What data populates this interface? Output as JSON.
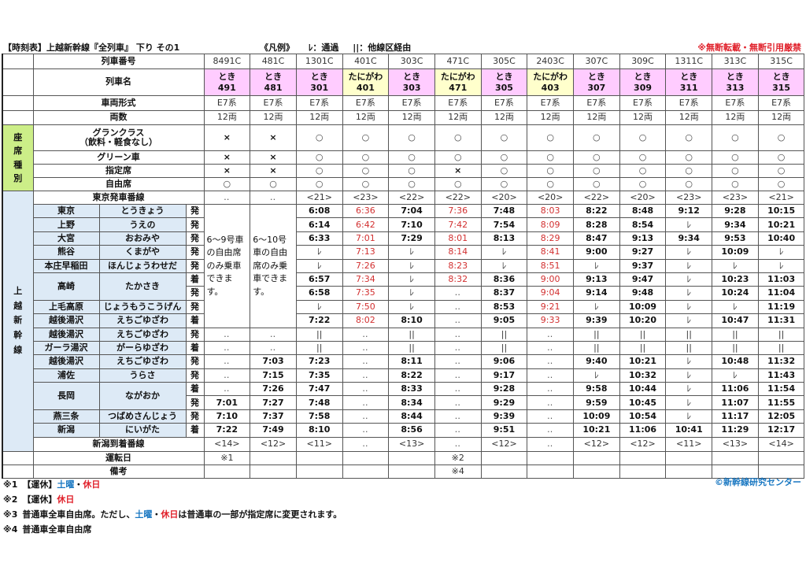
{
  "header": {
    "title": "【時刻表】上越新幹線『全列車』 下り その1",
    "legend_title": "《凡例》",
    "legend_pass": "ﾚ：通過",
    "legend_other": "||：他線区経由",
    "notice": "※無断転載・無断引用厳禁"
  },
  "labels": {
    "train_number": "列車番号",
    "train_name": "列車名",
    "car_type": "車両形式",
    "car_count": "両数",
    "seat_group": "座席種別",
    "gran_class_1": "グランクラス",
    "gran_class_2": "（飲料・軽食なし）",
    "green": "グリーン車",
    "reserved": "指定席",
    "unreserved": "自由席",
    "tokyo_track": "東京発車番線",
    "line_group": "上越新幹線",
    "niigata_track": "新潟到着番線",
    "operation_days": "運転日",
    "remarks": "備考"
  },
  "trains": [
    {
      "number": "8491C",
      "name": "とき",
      "num": "491",
      "type": "toki",
      "car": "E7系",
      "cars": "12両",
      "gran": "×",
      "green": "×",
      "reserved": "×",
      "free": "○",
      "tokyo_track": "‥",
      "niigata_track": "<14>",
      "op": "※1",
      "remark": ""
    },
    {
      "number": "481C",
      "name": "とき",
      "num": "481",
      "type": "toki",
      "car": "E7系",
      "cars": "12両",
      "gran": "×",
      "green": "×",
      "reserved": "×",
      "free": "○",
      "tokyo_track": "‥",
      "niigata_track": "<12>",
      "op": "",
      "remark": ""
    },
    {
      "number": "1301C",
      "name": "とき",
      "num": "301",
      "type": "toki",
      "car": "E7系",
      "cars": "12両",
      "gran": "○",
      "green": "○",
      "reserved": "○",
      "free": "○",
      "tokyo_track": "<21>",
      "niigata_track": "<11>",
      "op": "",
      "remark": ""
    },
    {
      "number": "401C",
      "name": "たにがわ",
      "num": "401",
      "type": "tani",
      "car": "E7系",
      "cars": "12両",
      "gran": "○",
      "green": "○",
      "reserved": "○",
      "free": "○",
      "tokyo_track": "<23>",
      "niigata_track": "‥",
      "op": "",
      "remark": ""
    },
    {
      "number": "303C",
      "name": "とき",
      "num": "303",
      "type": "toki",
      "car": "E7系",
      "cars": "12両",
      "gran": "○",
      "green": "○",
      "reserved": "○",
      "free": "○",
      "tokyo_track": "<22>",
      "niigata_track": "<13>",
      "op": "",
      "remark": ""
    },
    {
      "number": "471C",
      "name": "たにがわ",
      "num": "471",
      "type": "tani",
      "car": "E7系",
      "cars": "12両",
      "gran": "○",
      "green": "○",
      "reserved": "×",
      "free": "○",
      "tokyo_track": "<22>",
      "niigata_track": "‥",
      "op": "※2",
      "remark": "※4"
    },
    {
      "number": "305C",
      "name": "とき",
      "num": "305",
      "type": "toki",
      "car": "E7系",
      "cars": "12両",
      "gran": "○",
      "green": "○",
      "reserved": "○",
      "free": "○",
      "tokyo_track": "<20>",
      "niigata_track": "<12>",
      "op": "",
      "remark": ""
    },
    {
      "number": "2403C",
      "name": "たにがわ",
      "num": "403",
      "type": "tani",
      "car": "E7系",
      "cars": "12両",
      "gran": "○",
      "green": "○",
      "reserved": "○",
      "free": "○",
      "tokyo_track": "<20>",
      "niigata_track": "‥",
      "op": "",
      "remark": ""
    },
    {
      "number": "307C",
      "name": "とき",
      "num": "307",
      "type": "toki",
      "car": "E7系",
      "cars": "12両",
      "gran": "○",
      "green": "○",
      "reserved": "○",
      "free": "○",
      "tokyo_track": "<22>",
      "niigata_track": "<12>",
      "op": "",
      "remark": ""
    },
    {
      "number": "309C",
      "name": "とき",
      "num": "309",
      "type": "toki",
      "car": "E7系",
      "cars": "12両",
      "gran": "○",
      "green": "○",
      "reserved": "○",
      "free": "○",
      "tokyo_track": "<20>",
      "niigata_track": "<12>",
      "op": "",
      "remark": ""
    },
    {
      "number": "1311C",
      "name": "とき",
      "num": "311",
      "type": "toki",
      "car": "E7系",
      "cars": "12両",
      "gran": "○",
      "green": "○",
      "reserved": "○",
      "free": "○",
      "tokyo_track": "<23>",
      "niigata_track": "<11>",
      "op": "",
      "remark": ""
    },
    {
      "number": "313C",
      "name": "とき",
      "num": "313",
      "type": "toki",
      "car": "E7系",
      "cars": "12両",
      "gran": "○",
      "green": "○",
      "reserved": "○",
      "free": "○",
      "tokyo_track": "<23>",
      "niigata_track": "<13>",
      "op": "",
      "remark": ""
    },
    {
      "number": "315C",
      "name": "とき",
      "num": "315",
      "type": "toki",
      "car": "E7系",
      "cars": "12両",
      "gran": "○",
      "green": "○",
      "reserved": "○",
      "free": "○",
      "tokyo_track": "<21>",
      "niigata_track": "<14>",
      "op": "",
      "remark": ""
    }
  ],
  "span_notes": {
    "train_491": "6～9号車の自由席のみ乗車できます。",
    "train_481": "6～10号車の自由席のみ乗車できます。"
  },
  "stations": [
    {
      "kanji": "東京",
      "kana": "とうきょう",
      "ad": "発",
      "span": 1,
      "times": [
        null,
        null,
        "6:08",
        "6:36",
        "7:04",
        "7:36",
        "7:48",
        "8:03",
        "8:22",
        "8:48",
        "9:12",
        "9:28",
        "10:15"
      ]
    },
    {
      "kanji": "上野",
      "kana": "うえの",
      "ad": "発",
      "span": 1,
      "times": [
        null,
        null,
        "6:14",
        "6:42",
        "7:10",
        "7:42",
        "7:54",
        "8:09",
        "8:28",
        "8:54",
        "ﾚ",
        "9:34",
        "10:21"
      ]
    },
    {
      "kanji": "大宮",
      "kana": "おおみや",
      "ad": "発",
      "span": 1,
      "times": [
        null,
        null,
        "6:33",
        "7:01",
        "7:29",
        "8:01",
        "8:13",
        "8:29",
        "8:47",
        "9:13",
        "9:34",
        "9:53",
        "10:40"
      ]
    },
    {
      "kanji": "熊谷",
      "kana": "くまがや",
      "ad": "発",
      "span": 1,
      "times": [
        null,
        null,
        "ﾚ",
        "7:13",
        "ﾚ",
        "8:14",
        "ﾚ",
        "8:41",
        "9:00",
        "9:27",
        "ﾚ",
        "10:09",
        "ﾚ"
      ]
    },
    {
      "kanji": "本庄早稲田",
      "kana": "ほんじょうわせだ",
      "ad": "発",
      "span": 1,
      "times": [
        null,
        null,
        "ﾚ",
        "7:26",
        "ﾚ",
        "8:23",
        "ﾚ",
        "8:51",
        "ﾚ",
        "9:37",
        "ﾚ",
        "ﾚ",
        "ﾚ"
      ]
    },
    {
      "kanji": "高崎",
      "kana": "たかさき",
      "ad": "着",
      "span": 2,
      "times": [
        null,
        null,
        "6:57",
        "7:34",
        "ﾚ",
        "8:32",
        "8:36",
        "9:00",
        "9:13",
        "9:47",
        "ﾚ",
        "10:23",
        "11:03"
      ]
    },
    {
      "kanji": "",
      "kana": "",
      "ad": "発",
      "span": 0,
      "times": [
        null,
        null,
        "6:58",
        "7:35",
        "ﾚ",
        "‥",
        "8:37",
        "9:04",
        "9:14",
        "9:48",
        "ﾚ",
        "10:24",
        "11:04"
      ]
    },
    {
      "kanji": "上毛高原",
      "kana": "じょうもうこうげん",
      "ad": "発",
      "span": 1,
      "times": [
        null,
        null,
        "ﾚ",
        "7:50",
        "ﾚ",
        "‥",
        "8:53",
        "9:21",
        "ﾚ",
        "10:09",
        "ﾚ",
        "ﾚ",
        "11:19"
      ]
    },
    {
      "kanji": "越後湯沢",
      "kana": "えちごゆざわ",
      "ad": "着",
      "span": 1,
      "times": [
        null,
        null,
        "7:22",
        "8:02",
        "8:10",
        "‥",
        "9:05",
        "9:33",
        "9:39",
        "10:20",
        "ﾚ",
        "10:47",
        "11:31"
      ]
    },
    {
      "kanji": "越後湯沢",
      "kana": "えちごゆざわ",
      "ad": "発",
      "span": 1,
      "times": [
        "‥",
        "‥",
        "||",
        "‥",
        "||",
        "‥",
        "||",
        "‥",
        "||",
        "||",
        "||",
        "||",
        "||"
      ]
    },
    {
      "kanji": "ガーラ湯沢",
      "kana": "がーらゆざわ",
      "ad": "着",
      "span": 1,
      "times": [
        "‥",
        "‥",
        "||",
        "‥",
        "||",
        "‥",
        "||",
        "‥",
        "||",
        "||",
        "||",
        "||",
        "||"
      ]
    },
    {
      "kanji": "越後湯沢",
      "kana": "えちごゆざわ",
      "ad": "発",
      "span": 1,
      "times": [
        "‥",
        "7:03",
        "7:23",
        "‥",
        "8:11",
        "‥",
        "9:06",
        "‥",
        "9:40",
        "10:21",
        "ﾚ",
        "10:48",
        "11:32"
      ]
    },
    {
      "kanji": "浦佐",
      "kana": "うらさ",
      "ad": "発",
      "span": 1,
      "times": [
        "‥",
        "7:15",
        "7:35",
        "‥",
        "8:22",
        "‥",
        "9:17",
        "‥",
        "ﾚ",
        "10:32",
        "ﾚ",
        "ﾚ",
        "11:43"
      ]
    },
    {
      "kanji": "長岡",
      "kana": "ながおか",
      "ad": "着",
      "span": 2,
      "times": [
        "‥",
        "7:26",
        "7:47",
        "‥",
        "8:33",
        "‥",
        "9:28",
        "‥",
        "9:58",
        "10:44",
        "ﾚ",
        "11:06",
        "11:54"
      ]
    },
    {
      "kanji": "",
      "kana": "",
      "ad": "発",
      "span": 0,
      "times": [
        "7:01",
        "7:27",
        "7:48",
        "‥",
        "8:34",
        "‥",
        "9:29",
        "‥",
        "9:59",
        "10:45",
        "ﾚ",
        "11:07",
        "11:55"
      ]
    },
    {
      "kanji": "燕三条",
      "kana": "つばめさんじょう",
      "ad": "発",
      "span": 1,
      "times": [
        "7:10",
        "7:37",
        "7:58",
        "‥",
        "8:44",
        "‥",
        "9:39",
        "‥",
        "10:09",
        "10:54",
        "ﾚ",
        "11:17",
        "12:05"
      ]
    },
    {
      "kanji": "新潟",
      "kana": "にいがた",
      "ad": "着",
      "span": 1,
      "times": [
        "7:22",
        "7:49",
        "8:10",
        "‥",
        "8:56",
        "‥",
        "9:51",
        "‥",
        "10:21",
        "11:06",
        "10:41",
        "11:29",
        "12:17"
      ]
    }
  ],
  "red_columns": [
    3,
    5,
    7
  ],
  "footnotes": [
    {
      "mark": "※1",
      "parts": [
        {
          "t": "【運休】",
          "c": ""
        },
        {
          "t": "土曜",
          "c": "blue"
        },
        {
          "t": "・",
          "c": ""
        },
        {
          "t": "休日",
          "c": "red"
        }
      ]
    },
    {
      "mark": "※2",
      "parts": [
        {
          "t": "【運休】",
          "c": ""
        },
        {
          "t": "休日",
          "c": "red"
        }
      ]
    },
    {
      "mark": "※3",
      "parts": [
        {
          "t": "普通車全車自由席。ただし、",
          "c": ""
        },
        {
          "t": "土曜",
          "c": "blue"
        },
        {
          "t": "・",
          "c": ""
        },
        {
          "t": "休日",
          "c": "red"
        },
        {
          "t": "は普通車の一部が指定席に変更されます。",
          "c": ""
        }
      ]
    },
    {
      "mark": "※4",
      "parts": [
        {
          "t": "普通車全車自由席",
          "c": ""
        }
      ]
    }
  ],
  "credit": "©新幹線研究センター",
  "colors": {
    "toki": "#ffccff",
    "tanigawa": "#ffffcc",
    "seat_group": "#ccee88",
    "station_bg": "#ddeaf6",
    "red_time": "#d23030",
    "notice_red": "#e0202a",
    "credit_blue": "#1a78c2"
  }
}
